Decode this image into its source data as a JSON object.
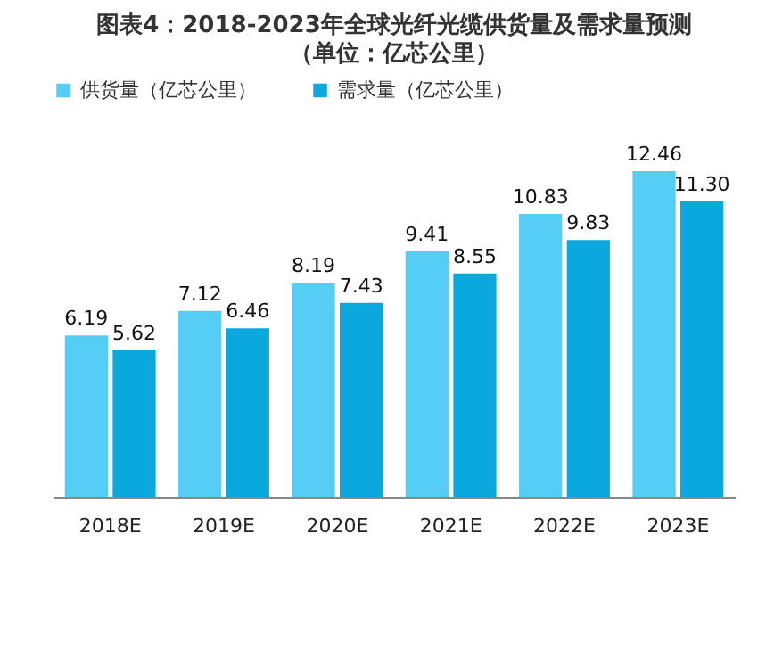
{
  "chart_data": {
    "type": "bar",
    "title": "图表4：2018-2023年全球光纤光缆供货量及需求量预测",
    "subtitle": "（单位：亿芯公里）",
    "categories": [
      "2018E",
      "2019E",
      "2020E",
      "2021E",
      "2022E",
      "2023E"
    ],
    "legend": "top",
    "series": [
      {
        "name": "供货量（亿芯公里）",
        "color": "#55cdf5",
        "values": [
          6.19,
          7.12,
          8.19,
          9.41,
          10.83,
          12.46
        ],
        "value_labels": [
          "6.19",
          "7.12",
          "8.19",
          "9.41",
          "10.83",
          "12.46"
        ]
      },
      {
        "name": "需求量（亿芯公里）",
        "color": "#0aa8dc",
        "values": [
          5.62,
          6.46,
          7.43,
          8.55,
          9.83,
          11.3
        ],
        "value_labels": [
          "5.62",
          "6.46",
          "7.43",
          "8.55",
          "9.83",
          "11.30"
        ]
      }
    ]
  }
}
